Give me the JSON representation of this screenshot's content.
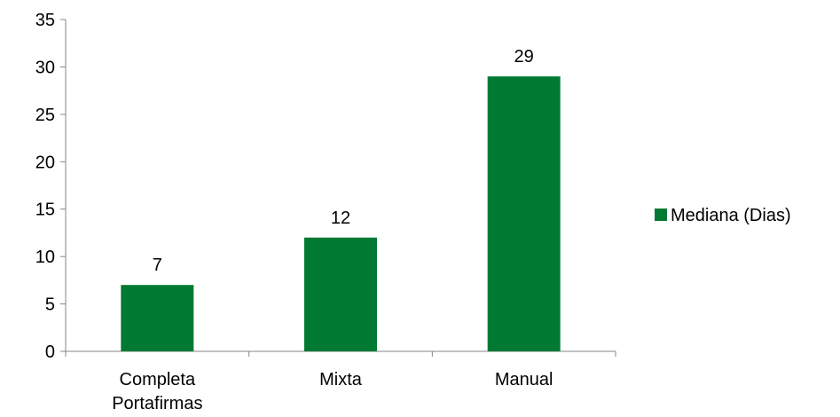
{
  "chart_data": {
    "type": "bar",
    "categories": [
      [
        "Completa",
        "Portafirmas"
      ],
      [
        "Mixta"
      ],
      [
        "Manual"
      ]
    ],
    "series": [
      {
        "name": "Mediana (Dias)",
        "values": [
          7,
          12,
          29
        ]
      }
    ],
    "data_labels": [
      "7",
      "12",
      "29"
    ],
    "ylim": [
      0,
      35
    ],
    "yticks": [
      0,
      5,
      10,
      15,
      20,
      25,
      30,
      35
    ],
    "grid": false,
    "legend_position": "right",
    "colors": {
      "bar": "#007A33",
      "axis": "#868686",
      "text": "#000000"
    }
  }
}
